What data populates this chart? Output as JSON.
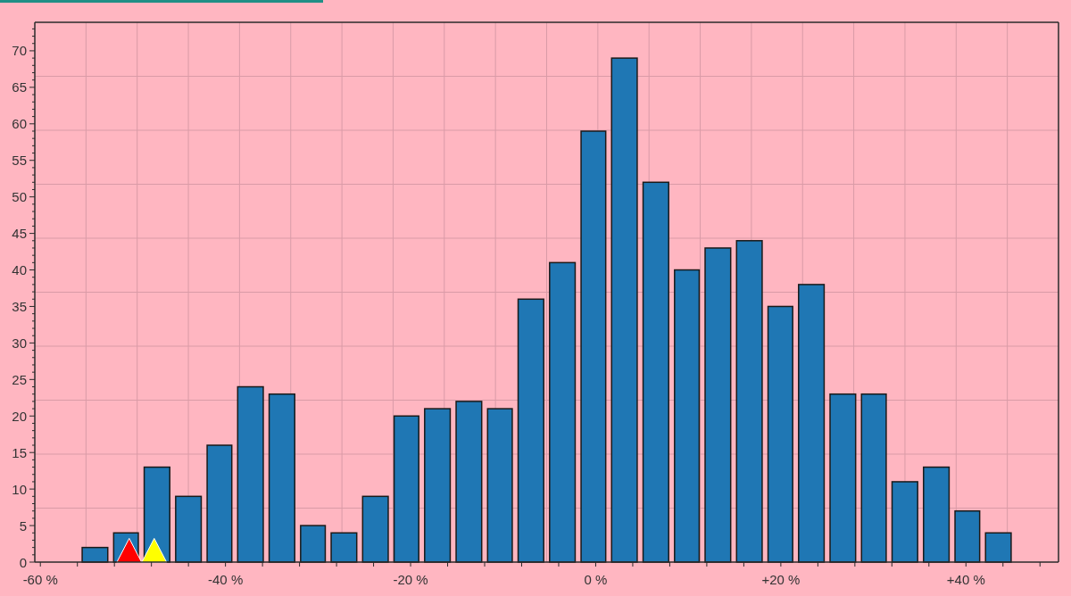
{
  "chart_data": {
    "type": "histogram",
    "bins": [
      -55.8,
      -52.4,
      -49.1,
      -45.7,
      -42.3,
      -39.0,
      -35.6,
      -32.2,
      -28.9,
      -25.5,
      -22.1,
      -18.8,
      -15.4,
      -12.0,
      -8.7,
      -5.3,
      -1.9,
      1.4,
      4.8,
      8.2,
      11.5,
      14.9,
      18.3,
      21.6,
      25.0,
      28.4,
      31.7,
      35.1,
      38.5,
      41.8,
      45.2
    ],
    "series": [
      {
        "color": "#1f77b4",
        "values": [
          2,
          4,
          13,
          9,
          16,
          24,
          23,
          5,
          4,
          9,
          20,
          21,
          22,
          21,
          36,
          41,
          59,
          69,
          52,
          40,
          43,
          44,
          35,
          38,
          23,
          23,
          11,
          13,
          7,
          4
        ]
      },
      {
        "type": "scatter",
        "x": [
          -50.4,
          -47.7
        ],
        "values": [
          1.6,
          1.6
        ],
        "colors": [
          "#ff0000",
          "#ffff00"
        ],
        "marker": "triangle"
      }
    ],
    "xlim": [
      -60.6,
      50
    ],
    "xticks": [
      {
        "value": -60,
        "label": "-60 %"
      },
      {
        "value": -56,
        "label": null
      },
      {
        "value": -52,
        "label": null
      },
      {
        "value": -48,
        "label": null
      },
      {
        "value": -44,
        "label": null
      },
      {
        "value": -40,
        "label": "-40 %"
      },
      {
        "value": -36,
        "label": null
      },
      {
        "value": -32,
        "label": null
      },
      {
        "value": -28,
        "label": null
      },
      {
        "value": -24,
        "label": null
      },
      {
        "value": -20,
        "label": "-20 %"
      },
      {
        "value": -16,
        "label": null
      },
      {
        "value": -12,
        "label": null
      },
      {
        "value": -8,
        "label": null
      },
      {
        "value": -4,
        "label": null
      },
      {
        "value": 0,
        "label": "0 %"
      },
      {
        "value": 4,
        "label": null
      },
      {
        "value": 8,
        "label": null
      },
      {
        "value": 12,
        "label": null
      },
      {
        "value": 16,
        "label": null
      },
      {
        "value": 20,
        "label": "+20 %"
      },
      {
        "value": 24,
        "label": null
      },
      {
        "value": 28,
        "label": null
      },
      {
        "value": 32,
        "label": null
      },
      {
        "value": 36,
        "label": null
      },
      {
        "value": 40,
        "label": "+40 %"
      },
      {
        "value": 44,
        "label": null
      },
      {
        "value": 48,
        "label": null
      }
    ],
    "ylim": [
      0,
      73.9
    ],
    "yticks": [
      0,
      {
        "value": 1,
        "label": null
      },
      {
        "value": 2,
        "label": null
      },
      {
        "value": 3,
        "label": null
      },
      {
        "value": 4,
        "label": null
      },
      5,
      {
        "value": 6,
        "label": null
      },
      {
        "value": 7,
        "label": null
      },
      {
        "value": 8,
        "label": null
      },
      {
        "value": 9,
        "label": null
      },
      10,
      {
        "value": 11,
        "label": null
      },
      {
        "value": 12,
        "label": null
      },
      {
        "value": 13,
        "label": null
      },
      {
        "value": 14,
        "label": null
      },
      15,
      {
        "value": 16,
        "label": null
      },
      {
        "value": 17,
        "label": null
      },
      {
        "value": 18,
        "label": null
      },
      {
        "value": 19,
        "label": null
      },
      20,
      {
        "value": 21,
        "label": null
      },
      {
        "value": 22,
        "label": null
      },
      {
        "value": 23,
        "label": null
      },
      {
        "value": 24,
        "label": null
      },
      25,
      {
        "value": 26,
        "label": null
      },
      {
        "value": 27,
        "label": null
      },
      {
        "value": 28,
        "label": null
      },
      {
        "value": 29,
        "label": null
      },
      30,
      {
        "value": 31,
        "label": null
      },
      {
        "value": 32,
        "label": null
      },
      {
        "value": 33,
        "label": null
      },
      {
        "value": 34,
        "label": null
      },
      35,
      {
        "value": 36,
        "label": null
      },
      {
        "value": 37,
        "label": null
      },
      {
        "value": 38,
        "label": null
      },
      {
        "value": 39,
        "label": null
      },
      40,
      {
        "value": 41,
        "label": null
      },
      {
        "value": 42,
        "label": null
      },
      {
        "value": 43,
        "label": null
      },
      {
        "value": 44,
        "label": null
      },
      45,
      {
        "value": 46,
        "label": null
      },
      {
        "value": 47,
        "label": null
      },
      {
        "value": 48,
        "label": null
      },
      {
        "value": 49,
        "label": null
      },
      50,
      {
        "value": 51,
        "label": null
      },
      {
        "value": 52,
        "label": null
      },
      {
        "value": 53,
        "label": null
      },
      {
        "value": 54,
        "label": null
      },
      55,
      {
        "value": 56,
        "label": null
      },
      {
        "value": 57,
        "label": null
      },
      {
        "value": 58,
        "label": null
      },
      {
        "value": 59,
        "label": null
      },
      60,
      {
        "value": 61,
        "label": null
      },
      {
        "value": 62,
        "label": null
      },
      {
        "value": 63,
        "label": null
      },
      {
        "value": 64,
        "label": null
      },
      65,
      {
        "value": 66,
        "label": null
      },
      {
        "value": 67,
        "label": null
      },
      {
        "value": 68,
        "label": null
      },
      {
        "value": 69,
        "label": null
      },
      70,
      {
        "value": 71,
        "label": null
      },
      {
        "value": 72,
        "label": null
      },
      {
        "value": 73,
        "label": null
      }
    ],
    "grid": true
  }
}
